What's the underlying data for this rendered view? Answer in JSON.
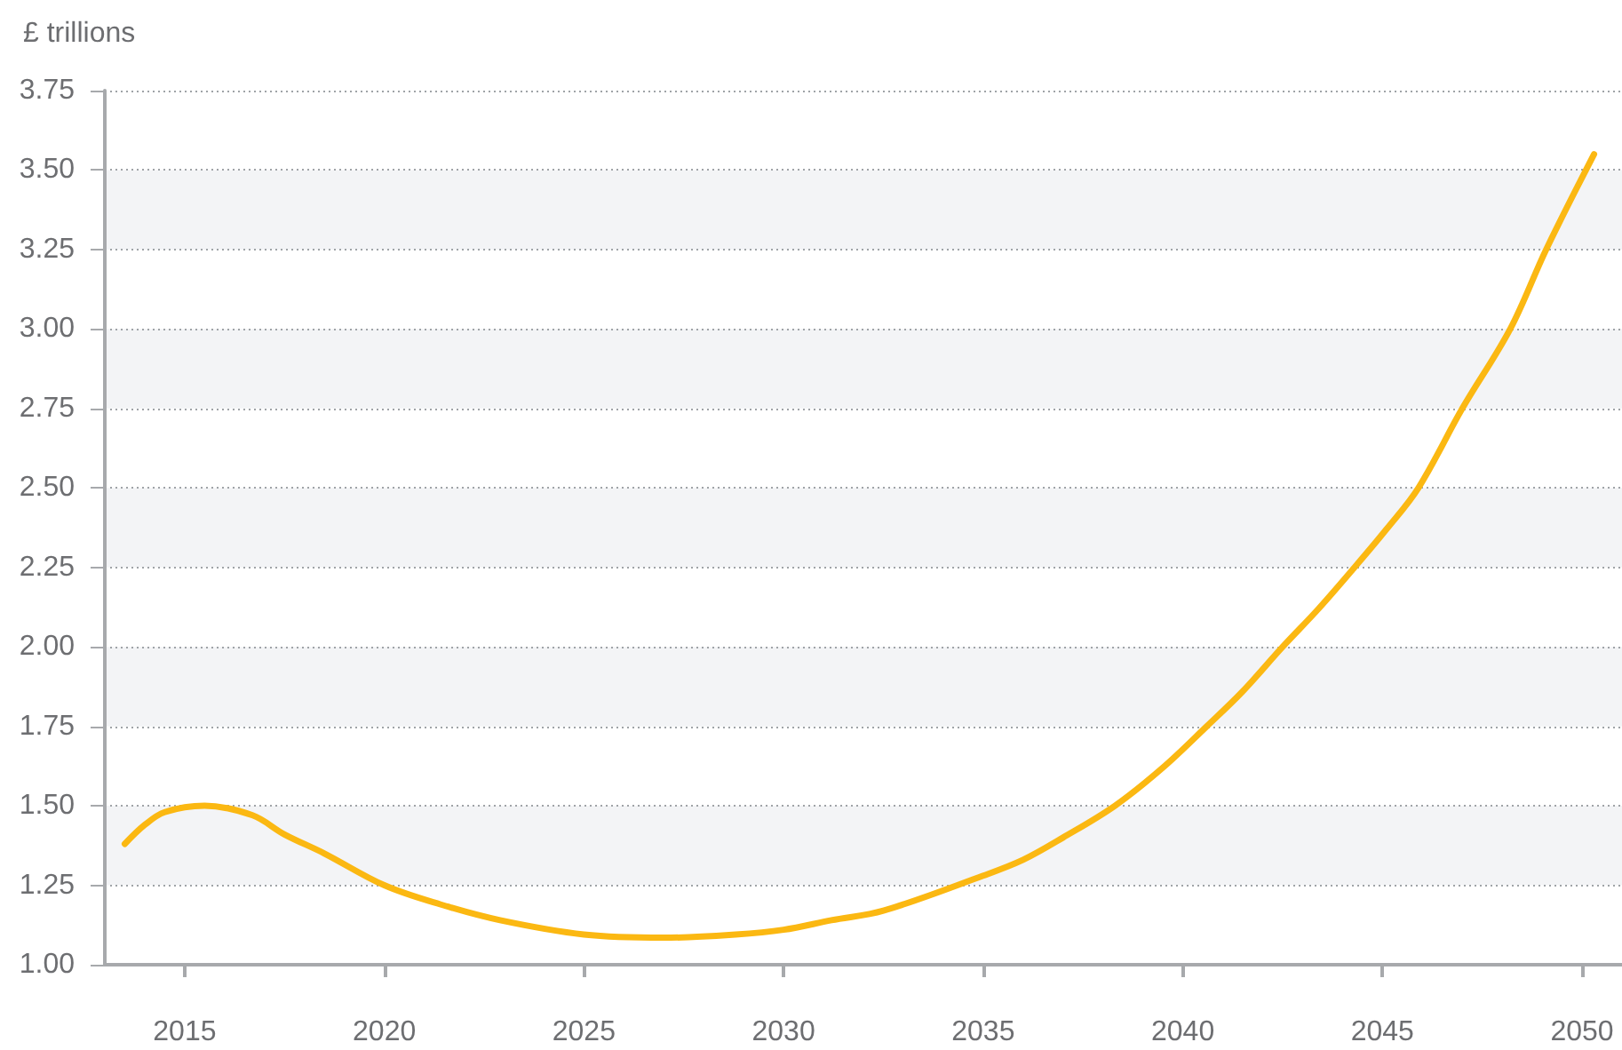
{
  "chart_data": {
    "type": "line",
    "ylabel": "£ trillions",
    "x": [
      2013.5,
      2014,
      2014.5,
      2015.5,
      2016.7,
      2017.5,
      2018.5,
      2020,
      2021.4,
      2022.9,
      2025,
      2027,
      2028.8,
      2030,
      2031.2,
      2032.5,
      2035,
      2036,
      2037,
      2038.3,
      2039.5,
      2040.6,
      2041.5,
      2042.5,
      2043.4,
      2044.3,
      2045.1,
      2045.9,
      2047,
      2048.2,
      2049.1,
      2050.3
    ],
    "series": [
      {
        "color": "#fbb812",
        "values": [
          1.38,
          1.44,
          1.48,
          1.5,
          1.47,
          1.41,
          1.35,
          1.25,
          1.19,
          1.14,
          1.095,
          1.085,
          1.095,
          1.11,
          1.14,
          1.17,
          1.28,
          1.33,
          1.4,
          1.5,
          1.62,
          1.75,
          1.86,
          2,
          2.12,
          2.25,
          2.37,
          2.5,
          2.75,
          3,
          3.25,
          3.55
        ]
      }
    ],
    "xlim": [
      2013,
      2051
    ],
    "xticks": [
      2015,
      2020,
      2025,
      2030,
      2035,
      2040,
      2045,
      2050
    ],
    "ylim": [
      1,
      3.75
    ],
    "yticks": [
      {
        "value": 1,
        "label": "1.00"
      },
      1.25,
      {
        "value": 1.5,
        "label": "1.50"
      },
      1.75,
      {
        "value": 2,
        "label": "2.00"
      },
      2.25,
      {
        "value": 2.5,
        "label": "2.50"
      },
      2.75,
      {
        "value": 3,
        "label": "3.00"
      },
      3.25,
      {
        "value": 3.5,
        "label": "3.50"
      },
      3.75
    ],
    "grid": "y",
    "marker": "none",
    "line_style": "solid"
  }
}
